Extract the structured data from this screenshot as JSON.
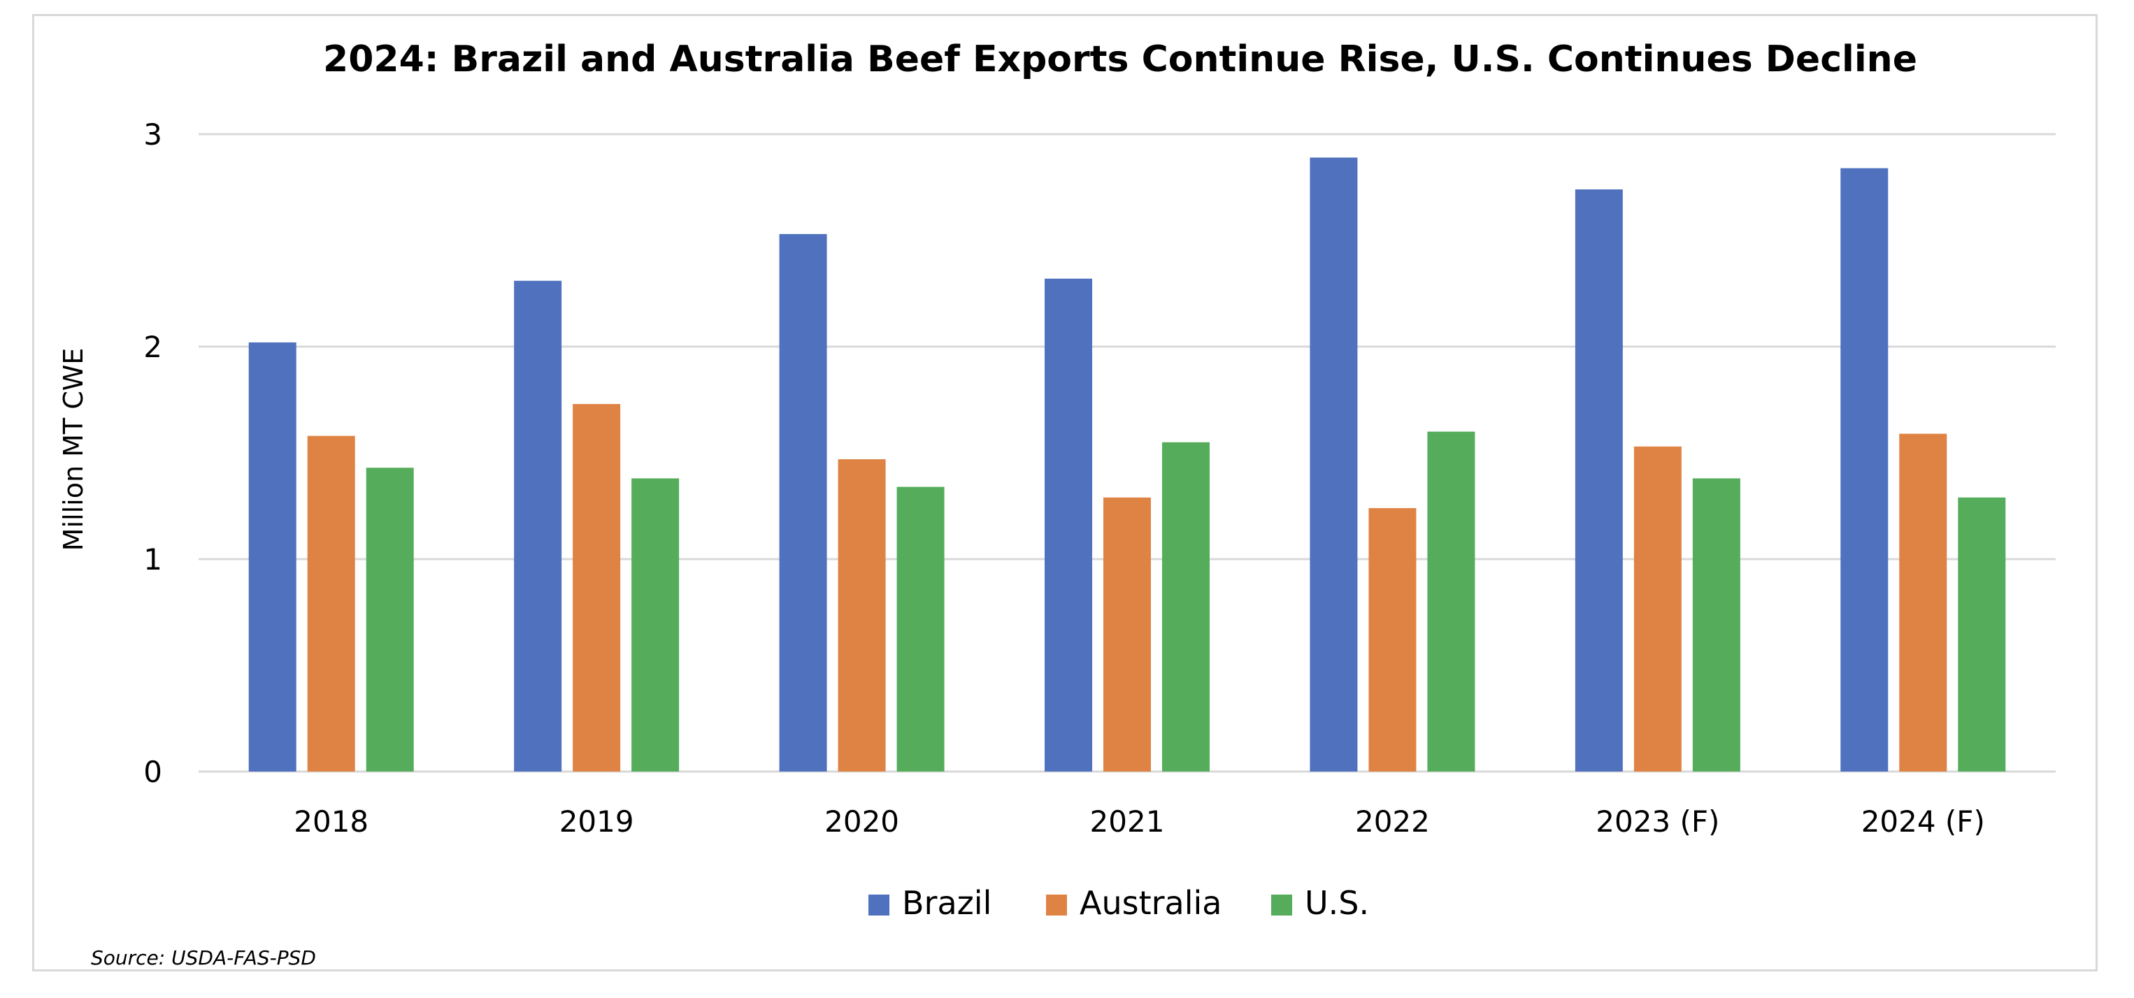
{
  "chart_data": {
    "type": "bar",
    "title": "2024: Brazil and Australia Beef Exports Continue Rise, U.S. Continues Decline",
    "xlabel": "",
    "ylabel": "Million MT CWE",
    "ylim": [
      0,
      3
    ],
    "yticks": [
      "0",
      "1",
      "2",
      "3"
    ],
    "grid": true,
    "legend_position": "bottom",
    "categories": [
      "2018",
      "2019",
      "2020",
      "2021",
      "2022",
      "2023 (F)",
      "2024 (F)"
    ],
    "series": [
      {
        "name": "Brazil",
        "color": "#4f71be",
        "values": [
          2.02,
          2.31,
          2.53,
          2.32,
          2.89,
          2.74,
          2.84
        ]
      },
      {
        "name": "Australia",
        "color": "#de8344",
        "values": [
          1.58,
          1.73,
          1.47,
          1.29,
          1.24,
          1.53,
          1.59
        ]
      },
      {
        "name": "U.S.",
        "color": "#55ad5b",
        "values": [
          1.43,
          1.38,
          1.34,
          1.55,
          1.6,
          1.38,
          1.29
        ]
      }
    ],
    "source": "Source: USDA-FAS-PSD"
  }
}
